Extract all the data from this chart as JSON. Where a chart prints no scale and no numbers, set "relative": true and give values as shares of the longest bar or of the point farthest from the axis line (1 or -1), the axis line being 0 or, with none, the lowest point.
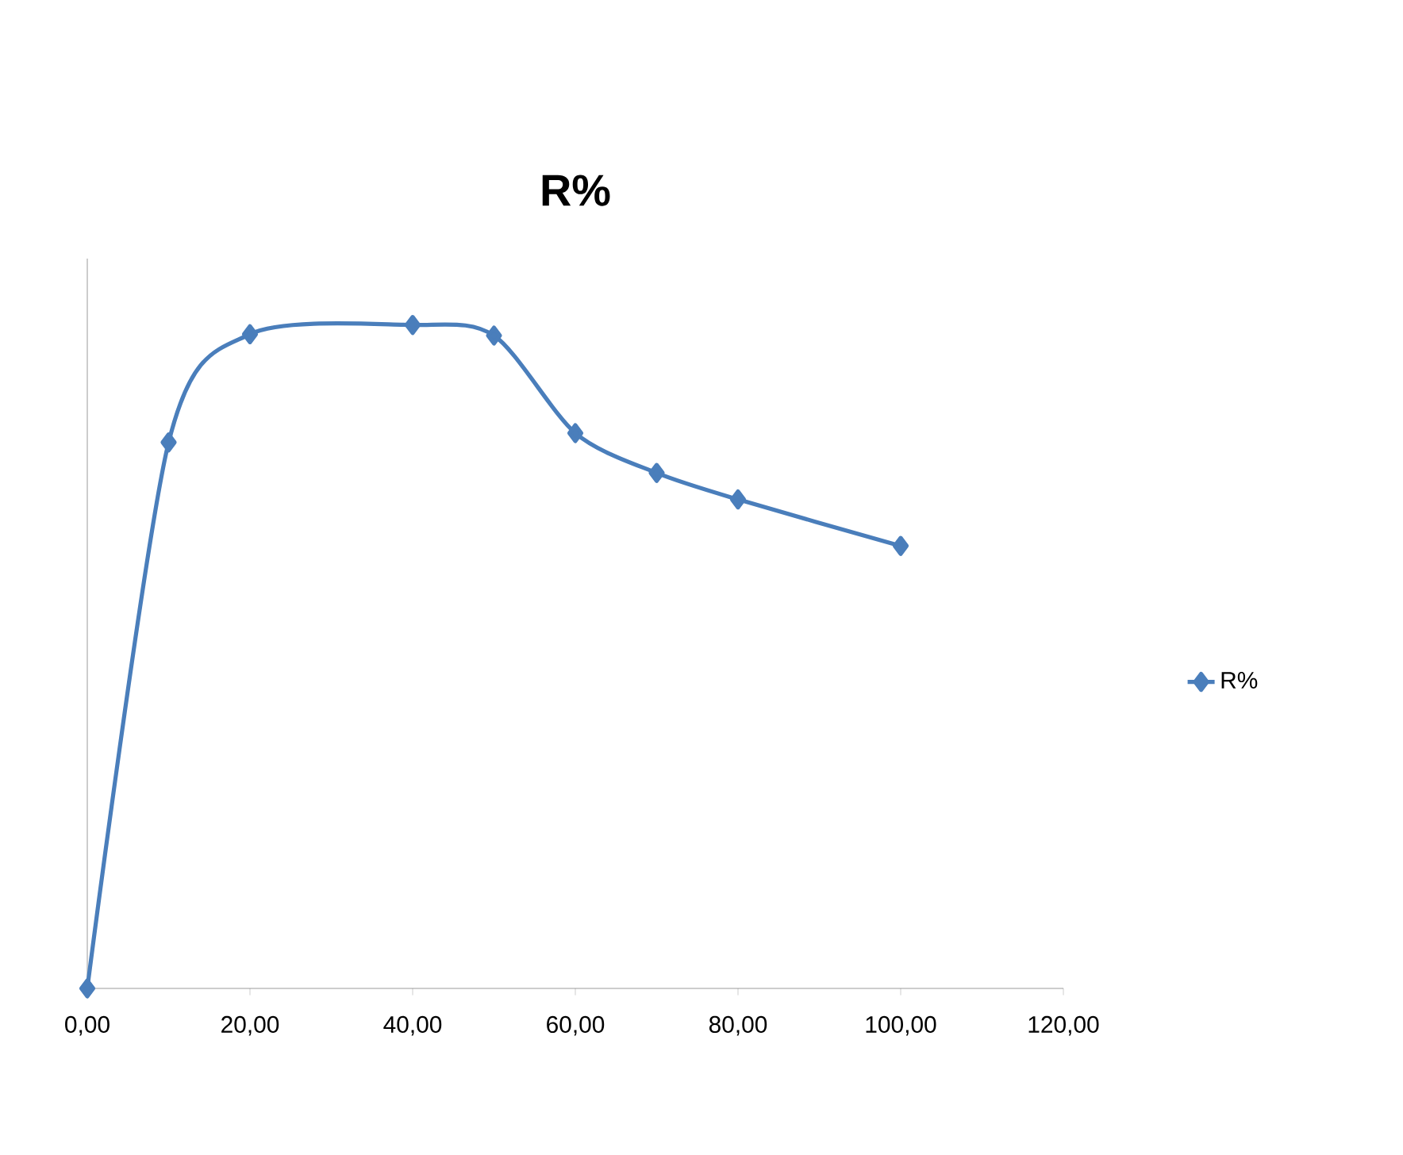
{
  "chart_data": {
    "type": "line",
    "title": "R%",
    "relative": true,
    "x": [
      0,
      10,
      20,
      40,
      50,
      60,
      70,
      80,
      100
    ],
    "series": [
      {
        "name": "R%",
        "color": "#4a7ebb",
        "values": [
          0,
          0.823,
          0.986,
          1,
          0.984,
          0.837,
          0.777,
          0.737,
          0.667
        ]
      }
    ],
    "xlim": [
      0,
      120
    ],
    "xticks": [
      {
        "value": 0,
        "label": "0,00"
      },
      {
        "value": 20,
        "label": "20,00"
      },
      {
        "value": 40,
        "label": "40,00"
      },
      {
        "value": 60,
        "label": "60,00"
      },
      {
        "value": 80,
        "label": "80,00"
      },
      {
        "value": 100,
        "label": "100,00"
      },
      {
        "value": 120,
        "label": "120,00"
      }
    ],
    "legend": "right",
    "marker": "diamond",
    "line_style": "solid"
  }
}
